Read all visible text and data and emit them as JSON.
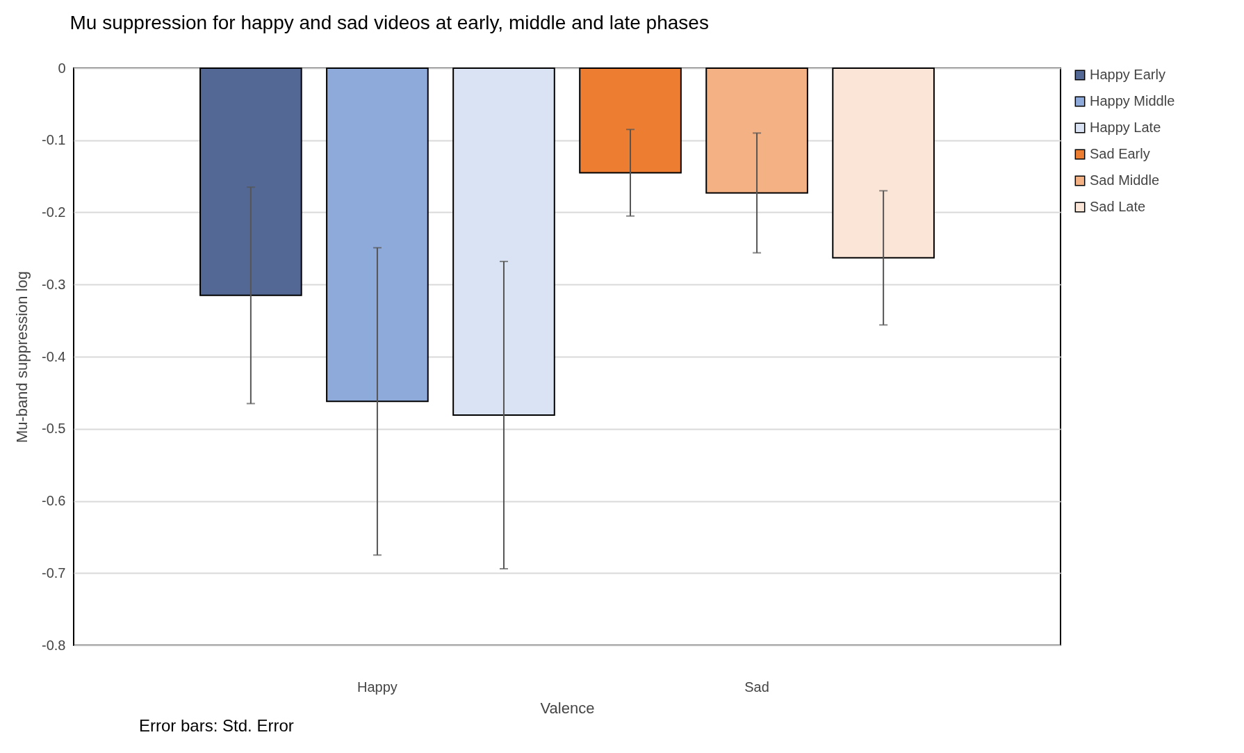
{
  "chart_data": {
    "type": "bar",
    "title": "Mu suppression for happy and sad videos at early, middle and late phases",
    "xlabel": "Valence",
    "ylabel": "Mu-band suppression log",
    "annotations": [
      "Error bars: Std. Error"
    ],
    "categories": [
      "Happy",
      "Sad"
    ],
    "series": [
      {
        "name": "Happy Early",
        "color": "#536895",
        "values": [
          -0.315,
          null
        ],
        "errors": [
          0.15,
          null
        ]
      },
      {
        "name": "Happy Middle",
        "color": "#8eaadb",
        "values": [
          -0.462,
          null
        ],
        "errors": [
          0.213,
          null
        ]
      },
      {
        "name": "Happy Late",
        "color": "#dae3f3",
        "values": [
          -0.481,
          null
        ],
        "errors": [
          0.213,
          null
        ]
      },
      {
        "name": "Sad Early",
        "color": "#ed7d31",
        "values": [
          null,
          -0.145
        ],
        "errors": [
          null,
          0.06
        ]
      },
      {
        "name": "Sad Middle",
        "color": "#f4b183",
        "values": [
          null,
          -0.173
        ],
        "errors": [
          null,
          0.083
        ]
      },
      {
        "name": "Sad Late",
        "color": "#fbe5d6",
        "values": [
          null,
          -0.263
        ],
        "errors": [
          null,
          0.093
        ]
      }
    ],
    "ylim": [
      -0.8,
      0
    ],
    "yticks": [
      0,
      -0.1,
      -0.2,
      -0.3,
      -0.4,
      -0.5,
      -0.6,
      -0.7,
      -0.8
    ],
    "grid": "y",
    "legend": "top right"
  }
}
